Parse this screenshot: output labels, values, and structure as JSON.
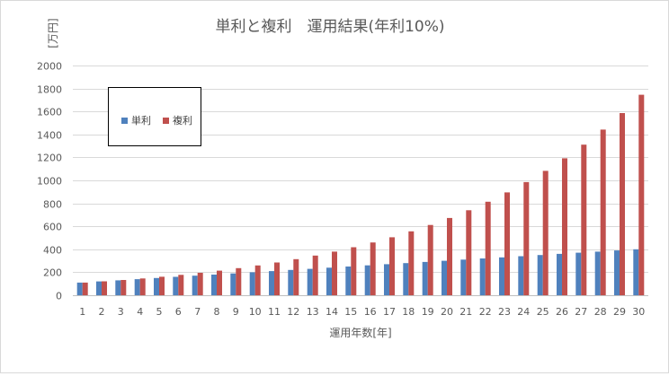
{
  "chart_data": {
    "type": "bar",
    "title": "単利と複利　運用結果(年利10%)",
    "xlabel": "運用年数[年]",
    "ylabel": "[万円]",
    "ylim": [
      0,
      2000
    ],
    "yticks": [
      0,
      200,
      400,
      600,
      800,
      1000,
      1200,
      1400,
      1600,
      1800,
      2000
    ],
    "grid": true,
    "legend_position": "top-left",
    "categories": [
      "1",
      "2",
      "3",
      "4",
      "5",
      "6",
      "7",
      "8",
      "9",
      "10",
      "11",
      "12",
      "13",
      "14",
      "15",
      "16",
      "17",
      "18",
      "19",
      "20",
      "21",
      "22",
      "23",
      "24",
      "25",
      "26",
      "27",
      "28",
      "29",
      "30"
    ],
    "series": [
      {
        "name": "単利",
        "color": "#4f81bd",
        "values": [
          110,
          120,
          130,
          140,
          150,
          160,
          170,
          180,
          190,
          200,
          210,
          220,
          230,
          240,
          250,
          260,
          270,
          280,
          290,
          300,
          310,
          320,
          330,
          340,
          350,
          360,
          370,
          380,
          390,
          400
        ]
      },
      {
        "name": "複利",
        "color": "#c0504d",
        "values": [
          110,
          121,
          133,
          146,
          161,
          177,
          195,
          214,
          236,
          259,
          285,
          314,
          345,
          380,
          418,
          459,
          505,
          556,
          612,
          673,
          740,
          814,
          895,
          985,
          1083,
          1192,
          1311,
          1442,
          1586,
          1745
        ]
      }
    ]
  }
}
